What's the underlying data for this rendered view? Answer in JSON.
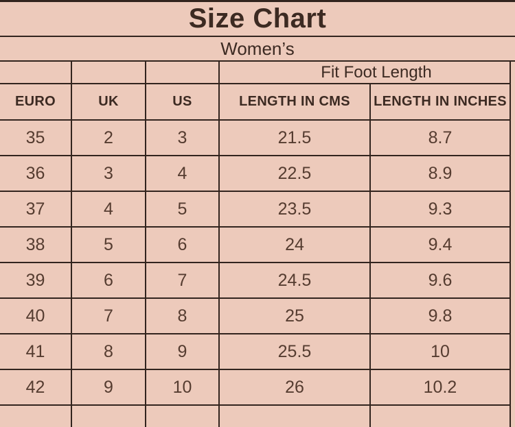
{
  "title": "Size Chart",
  "subtitle": "Women’s",
  "table": {
    "group_header": "Fit Foot Length",
    "columns": [
      "EURO",
      "UK",
      "US",
      "LENGTH IN CMS",
      "LENGTH IN INCHES"
    ],
    "rows": [
      [
        "35",
        "2",
        "3",
        "21.5",
        "8.7"
      ],
      [
        "36",
        "3",
        "4",
        "22.5",
        "8.9"
      ],
      [
        "37",
        "4",
        "5",
        "23.5",
        "9.3"
      ],
      [
        "38",
        "5",
        "6",
        "24",
        "9.4"
      ],
      [
        "39",
        "6",
        "7",
        "24.5",
        "9.6"
      ],
      [
        "40",
        "7",
        "8",
        "25",
        "9.8"
      ],
      [
        "41",
        "8",
        "9",
        "25.5",
        "10"
      ],
      [
        "42",
        "9",
        "10",
        "26",
        "10.2"
      ]
    ]
  },
  "colors": {
    "background": "#edcabb",
    "line": "#32241e",
    "text": "#4b352b"
  }
}
